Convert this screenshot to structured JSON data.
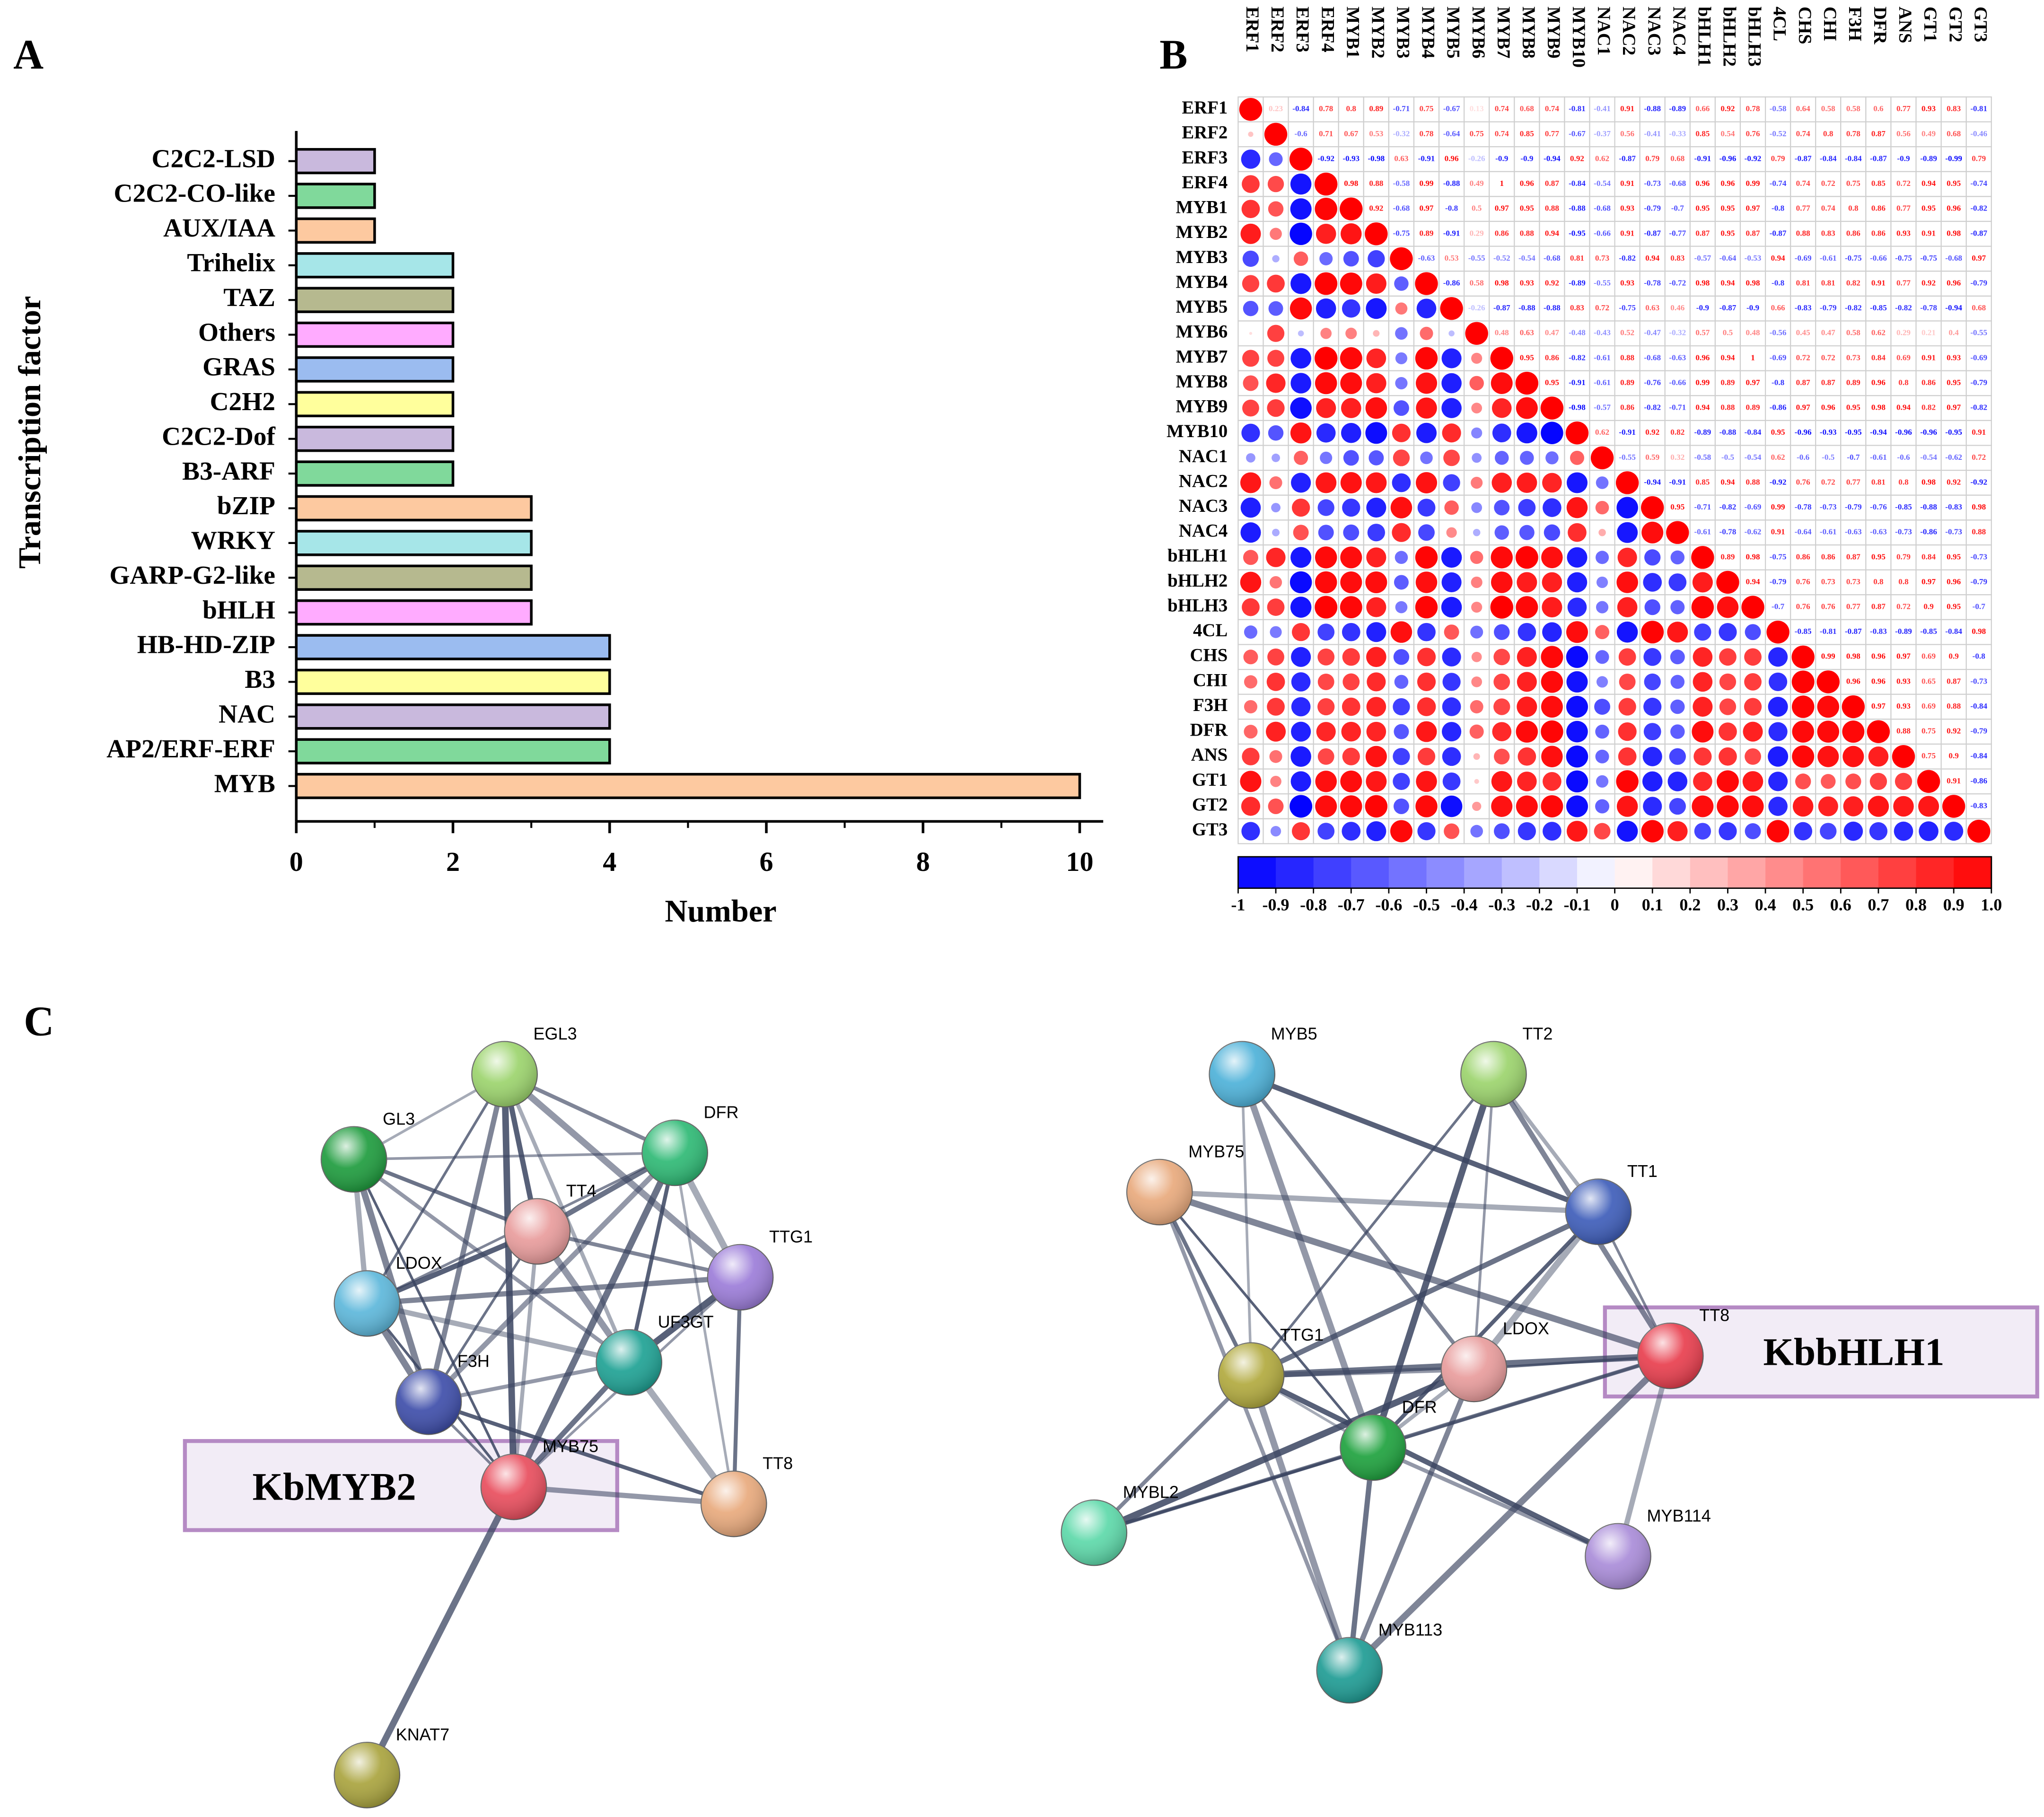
{
  "panels": [
    "A",
    "B",
    "C"
  ],
  "chart_data": [
    {
      "type": "bar",
      "orientation": "horizontal",
      "xlabel": "Number",
      "ylabel": "Transcription factor",
      "categories": [
        "C2C2-LSD",
        "C2C2-CO-like",
        "AUX/IAA",
        "Trihelix",
        "TAZ",
        "Others",
        "GRAS",
        "C2H2",
        "C2C2-Dof",
        "B3-ARF",
        "bZIP",
        "WRKY",
        "GARP-G2-like",
        "bHLH",
        "HB-HD-ZIP",
        "B3",
        "NAC",
        "AP2/ERF-ERF",
        "MYB"
      ],
      "values": [
        1,
        1,
        1,
        2,
        2,
        2,
        2,
        2,
        2,
        2,
        3,
        3,
        3,
        3,
        4,
        4,
        4,
        4,
        10
      ],
      "colors": [
        "#c9b9dd",
        "#80d99b",
        "#fdc9a0",
        "#a6e6e8",
        "#b6b98f",
        "#ffabff",
        "#9bbcf0",
        "#ffff9c",
        "#c9b9dd",
        "#80d99b",
        "#fdc9a0",
        "#a6e6e8",
        "#b6b98f",
        "#ffabff",
        "#9bbcf0",
        "#ffff9c",
        "#c9b9dd",
        "#80d99b",
        "#fdc9a0"
      ],
      "xlim": [
        0,
        10.3
      ],
      "xticks": [
        0,
        2,
        4,
        6,
        8,
        10
      ]
    },
    {
      "type": "correlation",
      "labels": [
        "ERF1",
        "ERF2",
        "ERF3",
        "ERF4",
        "MYB1",
        "MYB2",
        "MYB3",
        "MYB4",
        "MYB5",
        "MYB6",
        "MYB7",
        "MYB8",
        "MYB9",
        "MYB10",
        "NAC1",
        "NAC2",
        "NAC3",
        "NAC4",
        "bHLH1",
        "bHLH2",
        "bHLH3",
        "4CL",
        "CHS",
        "CHI",
        "F3H",
        "DFR",
        "ANS",
        "GT1",
        "GT2",
        "GT3"
      ],
      "rows": [
        [
          0.23,
          -0.84,
          0.78,
          0.8,
          0.89,
          -0.71,
          0.75,
          -0.67,
          0.13,
          0.74,
          0.68,
          0.74,
          -0.81,
          -0.41,
          0.91,
          -0.88,
          -0.89,
          0.66,
          0.92,
          0.78,
          -0.58,
          0.64,
          0.58,
          0.58,
          0.6,
          0.77,
          0.93,
          0.83,
          -0.81
        ],
        [
          -0.6,
          0.71,
          0.67,
          0.53,
          -0.32,
          0.78,
          -0.64,
          0.75,
          0.74,
          0.85,
          0.77,
          -0.67,
          -0.37,
          0.56,
          -0.41,
          -0.33,
          0.85,
          0.54,
          0.76,
          -0.52,
          0.74,
          0.8,
          0.78,
          0.87,
          0.56,
          0.49,
          0.68,
          -0.46
        ],
        [
          -0.92,
          -0.93,
          -0.98,
          0.63,
          -0.91,
          0.96,
          -0.26,
          -0.9,
          -0.9,
          -0.94,
          0.92,
          0.62,
          -0.87,
          0.79,
          0.68,
          -0.91,
          -0.96,
          -0.92,
          0.79,
          -0.87,
          -0.84,
          -0.84,
          -0.87,
          -0.9,
          -0.89,
          -0.99,
          0.79
        ],
        [
          0.98,
          0.88,
          -0.58,
          0.99,
          -0.88,
          0.49,
          1.0,
          0.96,
          0.87,
          -0.84,
          -0.54,
          0.91,
          -0.73,
          -0.68,
          0.96,
          0.96,
          0.99,
          -0.74,
          0.74,
          0.72,
          0.75,
          0.85,
          0.72,
          0.94,
          0.95,
          -0.74
        ],
        [
          0.92,
          -0.68,
          0.97,
          -0.8,
          0.5,
          0.97,
          0.95,
          0.88,
          -0.88,
          -0.68,
          0.93,
          -0.79,
          -0.7,
          0.95,
          0.95,
          0.97,
          -0.8,
          0.77,
          0.74,
          0.8,
          0.86,
          0.77,
          0.95,
          0.96,
          -0.82
        ],
        [
          -0.75,
          0.89,
          -0.91,
          0.29,
          0.86,
          0.88,
          0.94,
          -0.95,
          -0.66,
          0.91,
          -0.87,
          -0.77,
          0.87,
          0.95,
          0.87,
          -0.87,
          0.88,
          0.83,
          0.86,
          0.86,
          0.93,
          0.91,
          0.98,
          -0.87
        ],
        [
          -0.63,
          0.53,
          -0.55,
          -0.52,
          -0.54,
          -0.68,
          0.81,
          0.73,
          -0.82,
          0.94,
          0.83,
          -0.57,
          -0.64,
          -0.53,
          0.94,
          -0.69,
          -0.61,
          -0.75,
          -0.66,
          -0.75,
          -0.75,
          -0.68,
          0.97
        ],
        [
          -0.86,
          0.58,
          0.98,
          0.93,
          0.92,
          -0.89,
          -0.55,
          0.93,
          -0.78,
          -0.72,
          0.98,
          0.94,
          0.98,
          -0.8,
          0.81,
          0.81,
          0.82,
          0.91,
          0.77,
          0.92,
          0.96,
          -0.79
        ],
        [
          -0.26,
          -0.87,
          -0.88,
          -0.88,
          0.83,
          0.72,
          -0.75,
          0.63,
          0.46,
          -0.9,
          -0.87,
          -0.9,
          0.66,
          -0.83,
          -0.79,
          -0.82,
          -0.85,
          -0.82,
          -0.78,
          -0.94,
          0.68
        ],
        [
          0.48,
          0.63,
          0.47,
          -0.48,
          -0.43,
          0.52,
          -0.47,
          -0.32,
          0.57,
          0.5,
          0.48,
          -0.56,
          0.45,
          0.47,
          0.58,
          0.62,
          0.29,
          0.21,
          0.4,
          -0.55
        ],
        [
          0.95,
          0.86,
          -0.82,
          -0.61,
          0.88,
          -0.68,
          -0.63,
          0.96,
          0.94,
          1.0,
          -0.69,
          0.72,
          0.72,
          0.73,
          0.84,
          0.69,
          0.91,
          0.93,
          -0.69
        ],
        [
          0.95,
          -0.91,
          -0.61,
          0.89,
          -0.76,
          -0.66,
          0.99,
          0.89,
          0.97,
          -0.8,
          0.87,
          0.87,
          0.89,
          0.96,
          0.8,
          0.86,
          0.95,
          -0.79
        ],
        [
          -0.98,
          -0.57,
          0.86,
          -0.82,
          -0.71,
          0.94,
          0.88,
          0.89,
          -0.86,
          0.97,
          0.96,
          0.95,
          0.98,
          0.94,
          0.82,
          0.97,
          -0.82
        ],
        [
          0.62,
          -0.91,
          0.92,
          0.82,
          -0.89,
          -0.88,
          -0.84,
          0.95,
          -0.96,
          -0.93,
          -0.95,
          -0.94,
          -0.96,
          -0.96,
          -0.95,
          0.91
        ],
        [
          -0.55,
          0.59,
          0.32,
          -0.58,
          -0.5,
          -0.54,
          0.62,
          -0.6,
          -0.5,
          -0.7,
          -0.61,
          -0.6,
          -0.54,
          -0.62,
          0.72
        ],
        [
          -0.94,
          -0.91,
          0.85,
          0.94,
          0.88,
          -0.92,
          0.76,
          0.72,
          0.77,
          0.81,
          0.8,
          0.98,
          0.92,
          -0.92
        ],
        [
          0.95,
          -0.71,
          -0.82,
          -0.69,
          0.99,
          -0.78,
          -0.73,
          -0.79,
          -0.76,
          -0.85,
          -0.88,
          -0.83,
          0.98
        ],
        [
          -0.61,
          -0.78,
          -0.62,
          0.91,
          -0.64,
          -0.61,
          -0.63,
          -0.63,
          -0.73,
          -0.86,
          -0.73,
          0.88
        ],
        [
          0.89,
          0.98,
          -0.75,
          0.86,
          0.86,
          0.87,
          0.95,
          0.79,
          0.84,
          0.95,
          -0.73
        ],
        [
          0.94,
          -0.79,
          0.76,
          0.73,
          0.73,
          0.8,
          0.8,
          0.97,
          0.96,
          -0.79
        ],
        [
          -0.7,
          0.76,
          0.76,
          0.77,
          0.87,
          0.72,
          0.9,
          0.95,
          -0.7
        ],
        [
          -0.85,
          -0.81,
          -0.87,
          -0.83,
          -0.89,
          -0.85,
          -0.84,
          0.98
        ],
        [
          0.99,
          0.98,
          0.96,
          0.97,
          0.69,
          0.9,
          -0.8
        ],
        [
          0.96,
          0.96,
          0.93,
          0.65,
          0.87,
          -0.73
        ],
        [
          0.97,
          0.93,
          0.69,
          0.88,
          -0.84
        ],
        [
          0.88,
          0.75,
          0.92,
          -0.79
        ],
        [
          0.75,
          0.9,
          -0.84
        ],
        [
          0.91,
          -0.86
        ],
        [
          -0.83
        ]
      ],
      "clim": [
        -1,
        1
      ],
      "cticks": [
        -1,
        -0.9,
        -0.8,
        -0.7,
        -0.6,
        -0.5,
        -0.4,
        -0.3,
        -0.2,
        -0.1,
        0,
        0.1,
        0.2,
        0.3,
        0.4,
        0.5,
        0.6,
        0.7,
        0.8,
        0.9,
        {
          "value": 1,
          "label": "1.0"
        }
      ],
      "colors": [
        "#0000ff",
        "#ffffff",
        "#ff0000"
      ]
    }
  ],
  "networks": [
    {
      "highlight": "KbMYB2",
      "nodes": [
        "EGL3",
        "GL3",
        "DFR",
        "TT4",
        "TTG1",
        "LDOX",
        "UF3GT",
        "F3H",
        "MYB75",
        "TT8",
        "KNAT7"
      ]
    },
    {
      "highlight": "KbbHLH1",
      "nodes": [
        "MYB5",
        "TT2",
        "MYB75",
        "TT1",
        "TTG1",
        "LDOX",
        "TT8",
        "DFR",
        "MYBL2",
        "MYB114",
        "MYB113"
      ]
    }
  ]
}
